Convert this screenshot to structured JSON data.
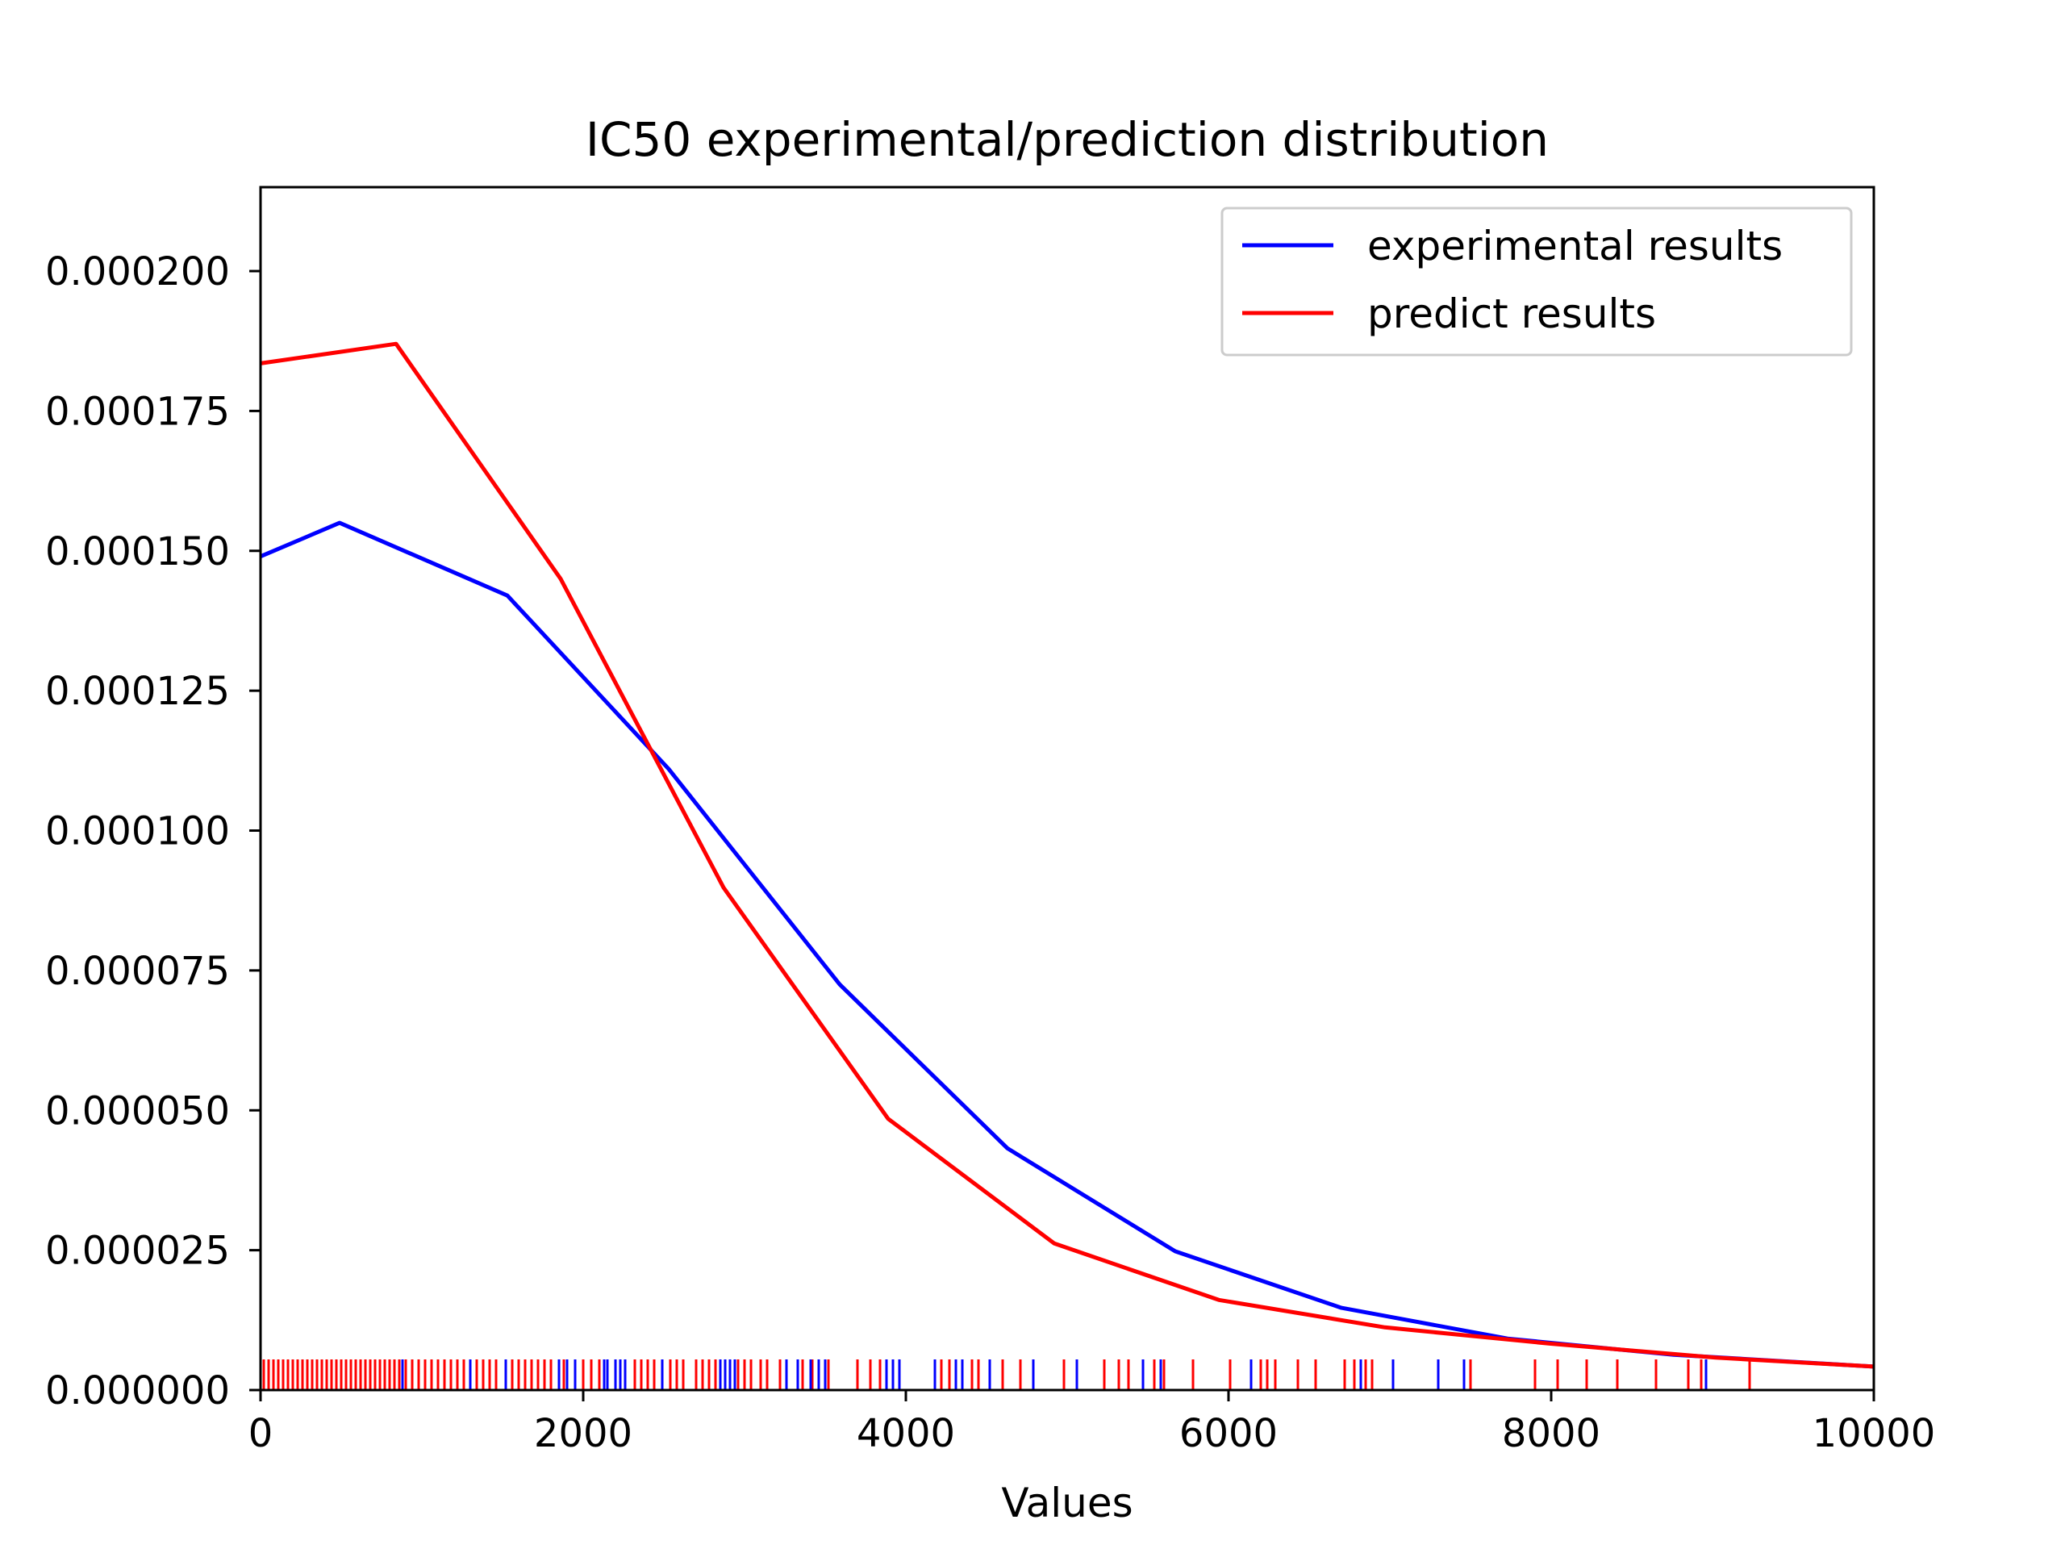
{
  "chart_data": {
    "type": "line",
    "title": "IC50 experimental/prediction distribution",
    "xlabel": "Values",
    "ylabel": "",
    "xlim": [
      0,
      10000
    ],
    "ylim": [
      0,
      0.000215
    ],
    "grid": false,
    "legend_position": "top-right",
    "x_ticks": [
      "0",
      "2000",
      "4000",
      "6000",
      "8000",
      "10000"
    ],
    "y_ticks": [
      "0.000000",
      "0.000025",
      "0.000050",
      "0.000075",
      "0.000100",
      "0.000125",
      "0.000150",
      "0.000175",
      "0.000200"
    ],
    "series": [
      {
        "name": "experimental results",
        "color": "#0000ff",
        "points": [
          [
            0,
            0.000149
          ],
          [
            490,
            0.000155
          ],
          [
            1530,
            0.000142
          ],
          [
            2530,
            0.000111
          ],
          [
            3590,
            7.25e-05
          ],
          [
            4630,
            4.32e-05
          ],
          [
            5670,
            2.48e-05
          ],
          [
            6700,
            1.47e-05
          ],
          [
            7730,
            9.2e-06
          ],
          [
            8760,
            6.3e-06
          ],
          [
            10000,
            4.2e-06
          ]
        ],
        "rug": [
          880,
          1300,
          1520,
          1850,
          1900,
          1950,
          2130,
          2150,
          2200,
          2230,
          2260,
          2490,
          2850,
          2880,
          2910,
          2940,
          3260,
          3330,
          3410,
          3460,
          3500,
          3880,
          3920,
          3960,
          4180,
          4310,
          4350,
          4520,
          4790,
          5060,
          5470,
          5580,
          6140,
          6820,
          7020,
          7300,
          7460,
          8960
        ]
      },
      {
        "name": "predict results",
        "color": "#ff0000",
        "points": [
          [
            0,
            0.0001835
          ],
          [
            840,
            0.000187
          ],
          [
            1860,
            0.000145
          ],
          [
            2870,
            8.98e-05
          ],
          [
            3890,
            4.85e-05
          ],
          [
            4920,
            2.62e-05
          ],
          [
            5940,
            1.61e-05
          ],
          [
            6970,
            1.12e-05
          ],
          [
            7990,
            8.3e-06
          ],
          [
            9020,
            5.8e-06
          ],
          [
            10000,
            4.2e-06
          ]
        ],
        "rug": [
          20,
          50,
          80,
          110,
          140,
          170,
          200,
          230,
          260,
          290,
          320,
          350,
          380,
          410,
          440,
          470,
          500,
          530,
          560,
          590,
          620,
          650,
          680,
          710,
          740,
          770,
          800,
          830,
          860,
          900,
          940,
          980,
          1020,
          1060,
          1100,
          1140,
          1180,
          1220,
          1260,
          1340,
          1380,
          1420,
          1460,
          1560,
          1600,
          1640,
          1680,
          1720,
          1760,
          1800,
          1880,
          2000,
          2050,
          2100,
          2320,
          2360,
          2400,
          2440,
          2540,
          2580,
          2620,
          2700,
          2740,
          2780,
          2820,
          2960,
          3000,
          3040,
          3100,
          3140,
          3220,
          3360,
          3420,
          3520,
          3700,
          3780,
          3840,
          4220,
          4270,
          4410,
          4450,
          4600,
          4710,
          4980,
          5230,
          5320,
          5380,
          5540,
          5600,
          5780,
          6010,
          6200,
          6240,
          6290,
          6430,
          6540,
          6720,
          6780,
          6850,
          6890,
          7500,
          7900,
          8040,
          8220,
          8410,
          8650,
          8850,
          8930,
          9230
        ]
      }
    ]
  }
}
